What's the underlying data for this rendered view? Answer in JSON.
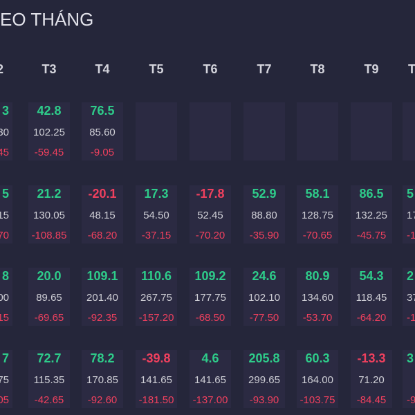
{
  "header": {
    "title": "EO THÁNG"
  },
  "table": {
    "columns": [
      "2",
      "T3",
      "T4",
      "T5",
      "T6",
      "T7",
      "T8",
      "T9",
      "T"
    ],
    "rows": [
      [
        {
          "main": "3",
          "sub": "30",
          "low": "45"
        },
        {
          "main": "42.8",
          "sub": "102.25",
          "low": "-59.45"
        },
        {
          "main": "76.5",
          "sub": "85.60",
          "low": "-9.05"
        },
        null,
        null,
        null,
        null,
        null,
        null
      ],
      [
        {
          "main": "5",
          "sub": "15",
          "low": "70"
        },
        {
          "main": "21.2",
          "sub": "130.05",
          "low": "-108.85"
        },
        {
          "main": "-20.1",
          "sub": "48.15",
          "low": "-68.20"
        },
        {
          "main": "17.3",
          "sub": "54.50",
          "low": "-37.15"
        },
        {
          "main": "-17.8",
          "sub": "52.45",
          "low": "-70.20"
        },
        {
          "main": "52.9",
          "sub": "88.80",
          "low": "-35.90"
        },
        {
          "main": "58.1",
          "sub": "128.75",
          "low": "-70.65"
        },
        {
          "main": "86.5",
          "sub": "132.25",
          "low": "-45.75"
        },
        {
          "main": "5",
          "sub": "17",
          "low": "-1"
        }
      ],
      [
        {
          "main": "8",
          "sub": "00",
          "low": "15"
        },
        {
          "main": "20.0",
          "sub": "89.65",
          "low": "-69.65"
        },
        {
          "main": "109.1",
          "sub": "201.40",
          "low": "-92.35"
        },
        {
          "main": "110.6",
          "sub": "267.75",
          "low": "-157.20"
        },
        {
          "main": "109.2",
          "sub": "177.75",
          "low": "-68.50"
        },
        {
          "main": "24.6",
          "sub": "102.10",
          "low": "-77.50"
        },
        {
          "main": "80.9",
          "sub": "134.60",
          "low": "-53.70"
        },
        {
          "main": "54.3",
          "sub": "118.45",
          "low": "-64.20"
        },
        {
          "main": "2",
          "sub": "37",
          "low": "-1"
        }
      ],
      [
        {
          "main": "7",
          "sub": "75",
          "low": "05"
        },
        {
          "main": "72.7",
          "sub": "115.35",
          "low": "-42.65"
        },
        {
          "main": "78.2",
          "sub": "170.85",
          "low": "-92.60"
        },
        {
          "main": "-39.8",
          "sub": "141.65",
          "low": "-181.50"
        },
        {
          "main": "4.6",
          "sub": "141.65",
          "low": "-137.00"
        },
        {
          "main": "205.8",
          "sub": "299.65",
          "low": "-93.90"
        },
        {
          "main": "60.3",
          "sub": "164.00",
          "low": "-103.75"
        },
        {
          "main": "-13.3",
          "sub": "71.20",
          "low": "-84.45"
        },
        {
          "main": "3",
          "low": "-9"
        }
      ]
    ]
  }
}
